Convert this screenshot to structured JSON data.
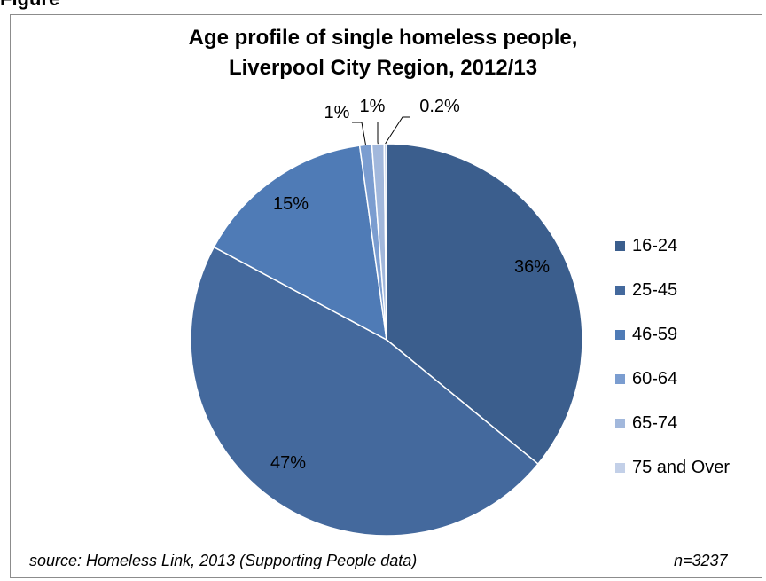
{
  "figure_label": "Figure",
  "chart_data": {
    "type": "pie",
    "title_lines": [
      "Age profile of single homeless people,",
      "Liverpool City Region, 2012/13"
    ],
    "categories": [
      "16-24",
      "25-45",
      "46-59",
      "60-64",
      "65-74",
      "75 and Over"
    ],
    "values": [
      36,
      47,
      15,
      1,
      1,
      0.2
    ],
    "data_labels": [
      "36%",
      "47%",
      "15%",
      "1%",
      "1%",
      "0.2%"
    ],
    "colors": [
      "#3b5e8d",
      "#44699d",
      "#4f7bb6",
      "#7b9dd0",
      "#a2b8dc",
      "#c3d0e8"
    ],
    "legend_position": "right"
  },
  "source": "source: Homeless Link, 2013 (Supporting People data)",
  "n_label": "n=3237"
}
